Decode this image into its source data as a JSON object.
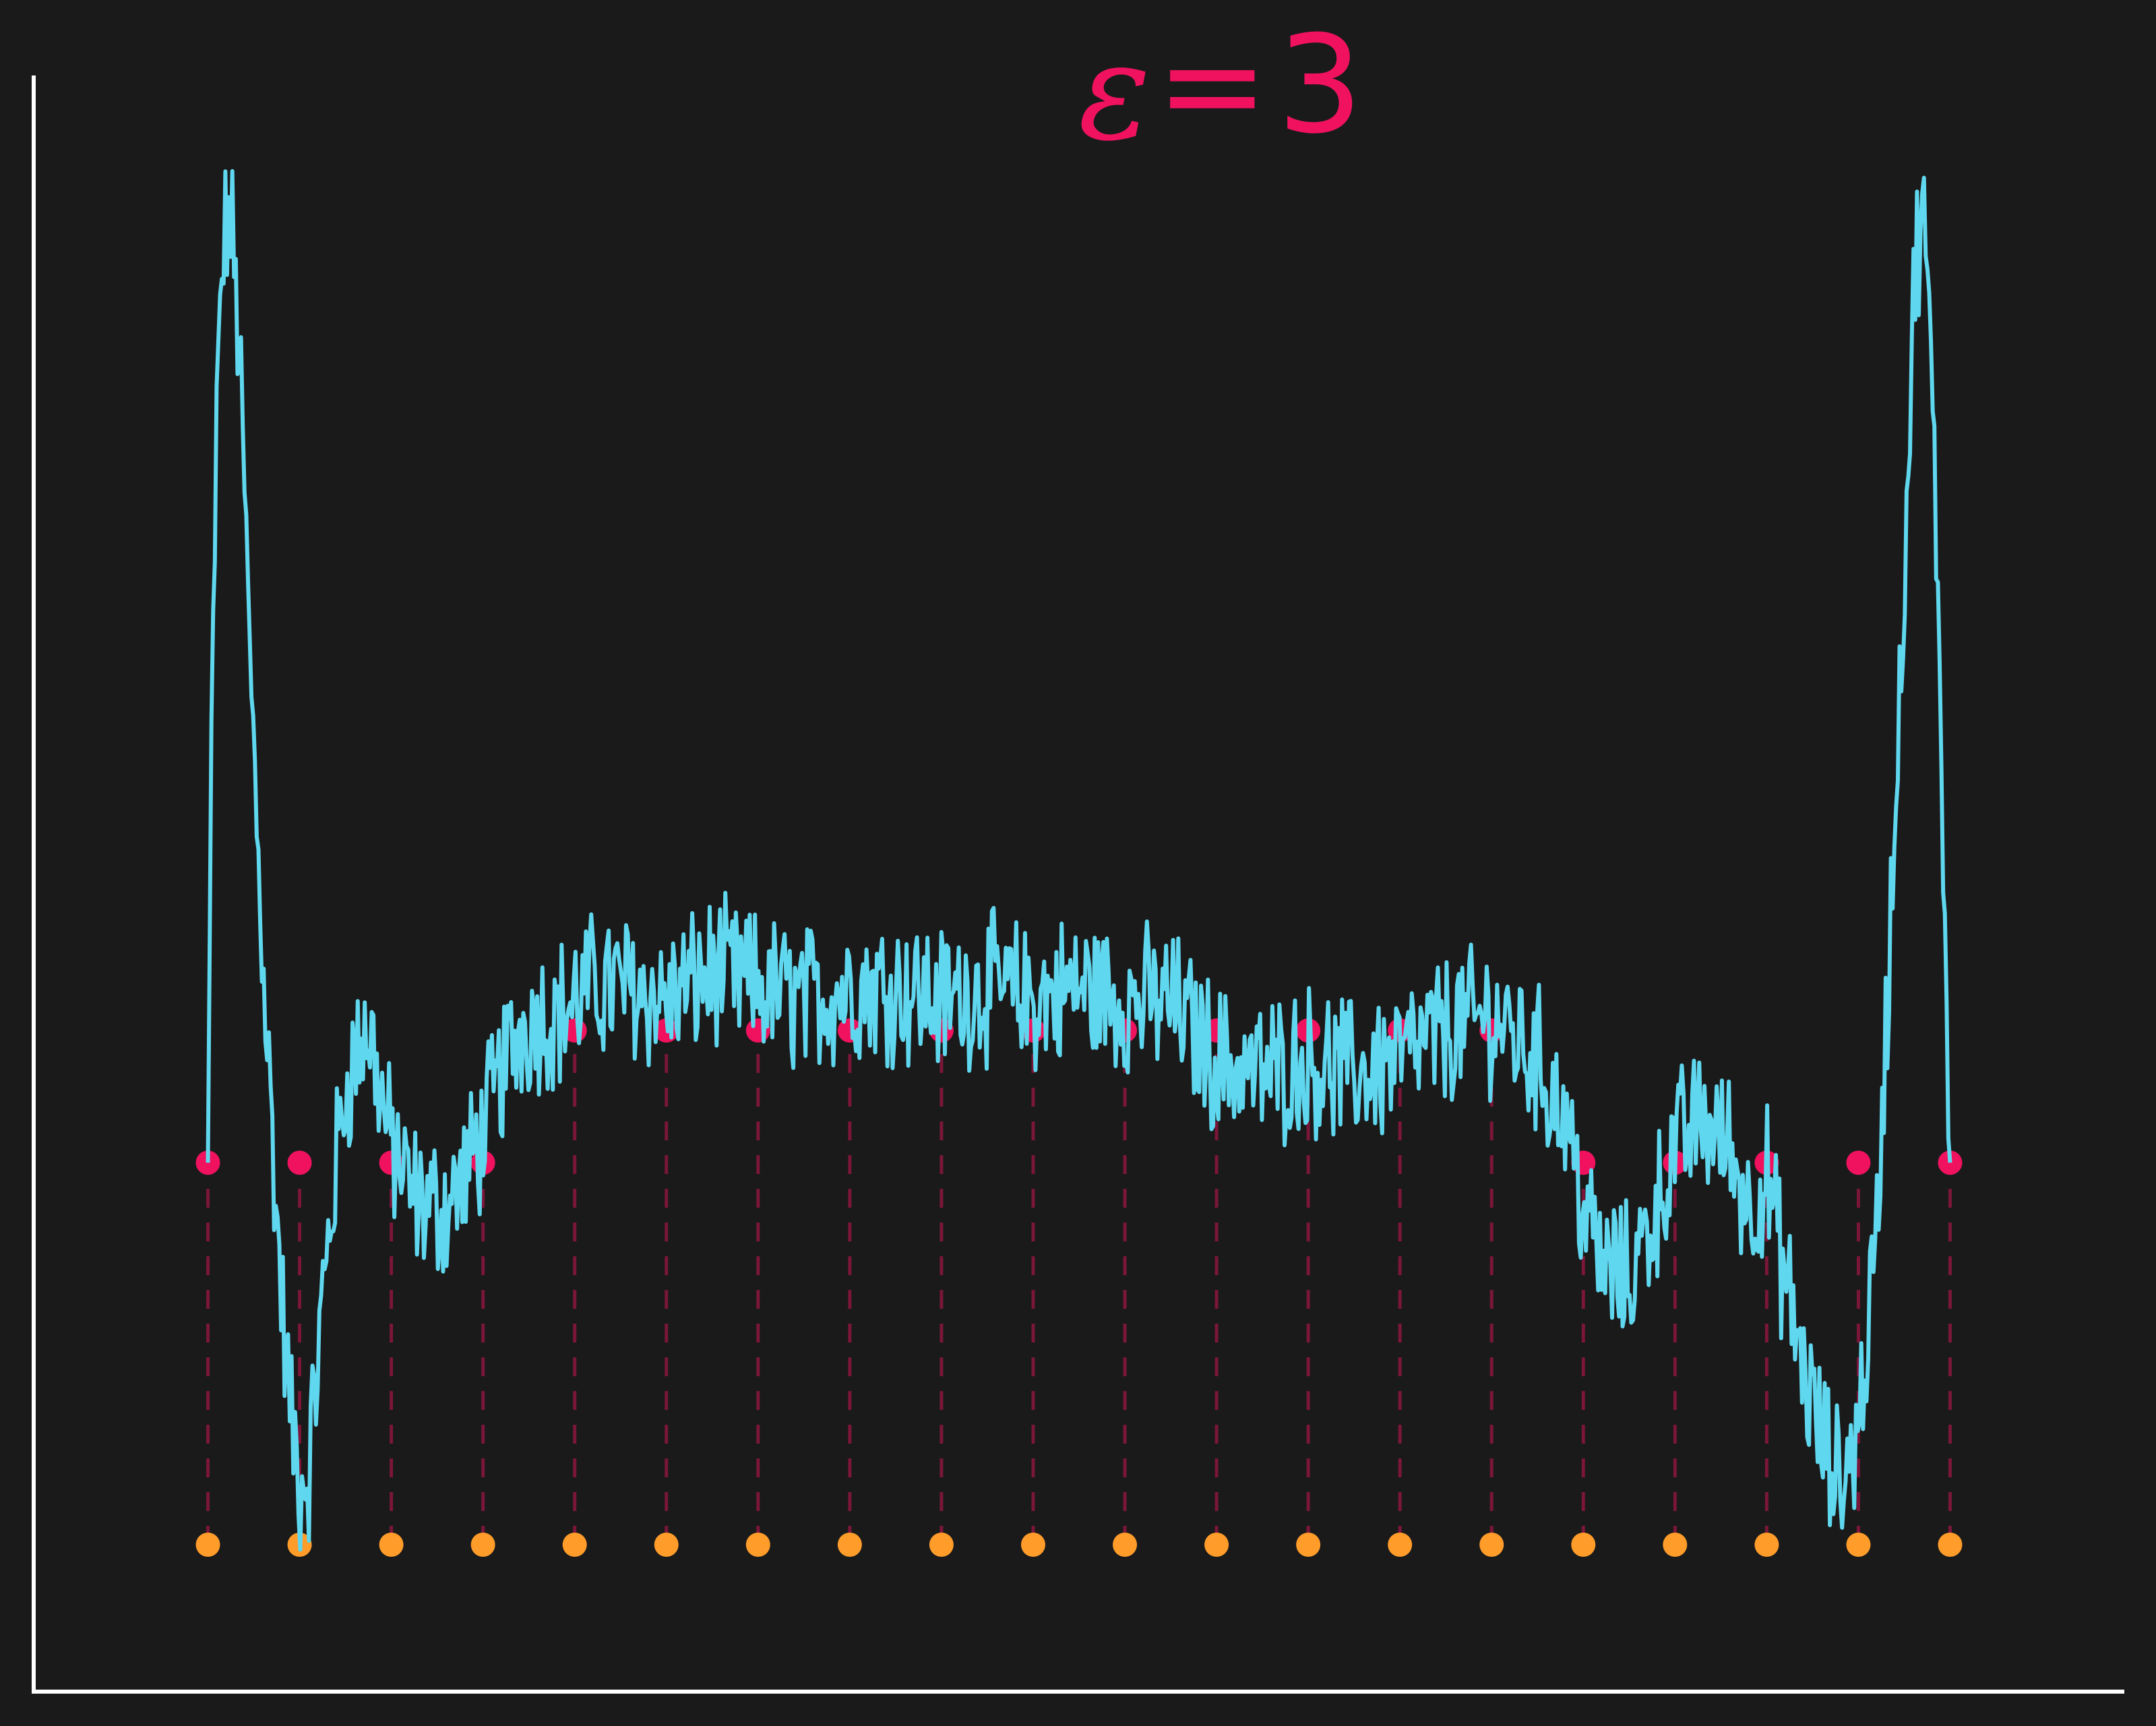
{
  "chart_data": {
    "type": "line",
    "title_symbol": "ε",
    "title_op": "=",
    "title_value": "3",
    "xlabel": "",
    "ylabel": "",
    "xlim": [
      -0.19,
      2.09
    ],
    "ylim": [
      -0.1,
      1.0
    ],
    "grid": false,
    "legend": "none",
    "colors": {
      "background": "#1a1a1a",
      "axes": "#ffffff",
      "line": "#5fd7ee",
      "level_points": "#f0125f",
      "base_points": "#ff9c2a",
      "dashes": "#f0125f"
    },
    "level_points": {
      "name": "",
      "x": [
        0.0,
        0.1,
        0.2,
        0.3,
        0.4,
        0.5,
        0.6,
        0.7,
        0.8,
        0.9,
        1.0,
        1.1,
        1.2,
        1.3,
        1.4,
        1.5,
        1.6,
        1.7,
        1.8,
        1.9
      ],
      "y": [
        0.26,
        0.26,
        0.26,
        0.26,
        0.35,
        0.35,
        0.35,
        0.35,
        0.35,
        0.35,
        0.35,
        0.35,
        0.35,
        0.35,
        0.35,
        0.26,
        0.26,
        0.26,
        0.26,
        0.26
      ]
    },
    "base_points": {
      "name": "",
      "x": [
        0.0,
        0.1,
        0.2,
        0.3,
        0.4,
        0.5,
        0.6,
        0.7,
        0.8,
        0.9,
        1.0,
        1.1,
        1.2,
        1.3,
        1.4,
        1.5,
        1.6,
        1.7,
        1.8,
        1.9
      ],
      "y": [
        0.0,
        0.0,
        0.0,
        0.0,
        0.0,
        0.0,
        0.0,
        0.0,
        0.0,
        0.0,
        0.0,
        0.0,
        0.0,
        0.0,
        0.0,
        0.0,
        0.0,
        0.0,
        0.0,
        0.0
      ]
    },
    "envelope": {
      "name": "",
      "noise_amplitude": 0.045,
      "x": [
        0.0,
        0.004,
        0.01,
        0.015,
        0.02,
        0.025,
        0.03,
        0.035,
        0.04,
        0.045,
        0.05,
        0.055,
        0.06,
        0.07,
        0.08,
        0.09,
        0.1,
        0.11,
        0.12,
        0.13,
        0.14,
        0.15,
        0.16,
        0.17,
        0.18,
        0.19,
        0.2,
        0.21,
        0.22,
        0.24,
        0.26,
        0.28,
        0.3,
        0.32,
        0.34,
        0.36,
        0.38,
        0.4,
        0.42,
        0.44,
        0.46,
        0.5,
        0.55,
        0.6,
        0.65,
        0.7,
        0.75,
        0.8,
        0.85,
        0.9,
        0.95,
        1.0,
        1.05,
        1.1,
        1.15,
        1.2,
        1.25,
        1.3,
        1.35,
        1.4,
        1.45,
        1.48,
        1.5,
        1.52,
        1.55,
        1.58,
        1.6,
        1.63,
        1.66,
        1.68,
        1.7,
        1.72,
        1.74,
        1.76,
        1.78,
        1.8,
        1.82,
        1.83,
        1.84,
        1.85,
        1.855,
        1.86,
        1.865,
        1.87,
        1.875,
        1.88,
        1.89,
        1.895,
        1.9
      ],
      "y": [
        0.26,
        0.55,
        0.78,
        0.86,
        0.9,
        0.9,
        0.86,
        0.8,
        0.71,
        0.62,
        0.54,
        0.47,
        0.4,
        0.28,
        0.17,
        0.09,
        0.04,
        0.05,
        0.13,
        0.2,
        0.26,
        0.31,
        0.33,
        0.35,
        0.34,
        0.3,
        0.27,
        0.26,
        0.24,
        0.23,
        0.23,
        0.25,
        0.28,
        0.32,
        0.35,
        0.36,
        0.36,
        0.37,
        0.38,
        0.38,
        0.38,
        0.37,
        0.39,
        0.38,
        0.37,
        0.38,
        0.38,
        0.37,
        0.38,
        0.37,
        0.38,
        0.37,
        0.37,
        0.33,
        0.32,
        0.33,
        0.32,
        0.33,
        0.35,
        0.36,
        0.33,
        0.29,
        0.23,
        0.19,
        0.18,
        0.23,
        0.27,
        0.29,
        0.27,
        0.23,
        0.25,
        0.18,
        0.12,
        0.07,
        0.04,
        0.08,
        0.21,
        0.35,
        0.5,
        0.66,
        0.75,
        0.84,
        0.89,
        0.9,
        0.87,
        0.78,
        0.58,
        0.38,
        0.26
      ]
    }
  }
}
